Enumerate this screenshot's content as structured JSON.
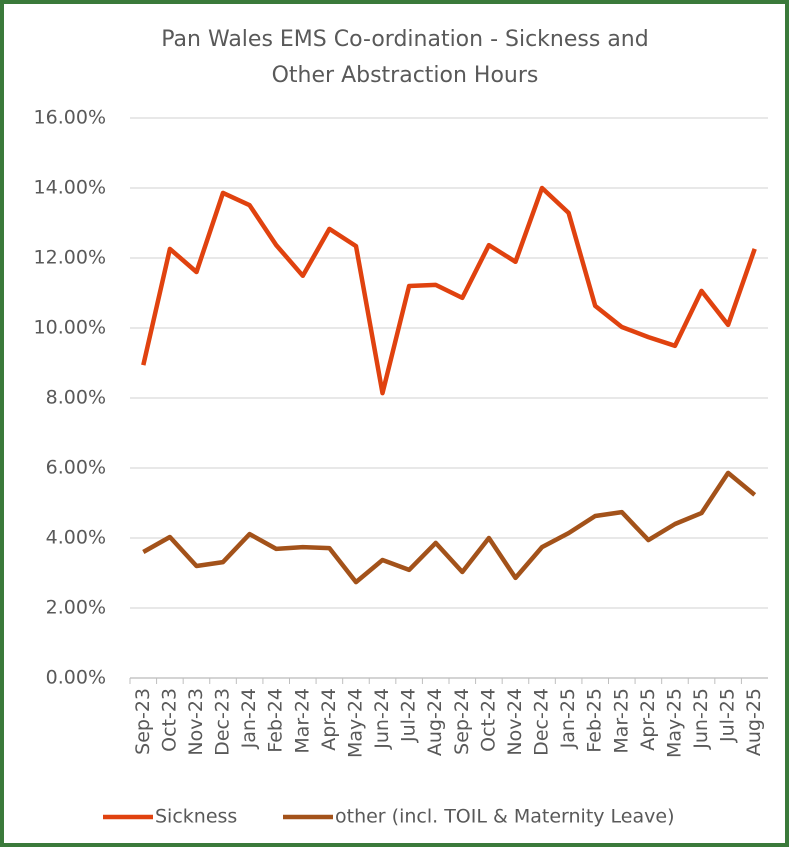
{
  "chart_data": {
    "type": "line",
    "title": [
      "Pan Wales EMS Co-ordination - Sickness and",
      "Other Abstraction Hours"
    ],
    "categories": [
      "Sep-23",
      "Oct-23",
      "Nov-23",
      "Dec-23",
      "Jan-24",
      "Feb-24",
      "Mar-24",
      "Apr-24",
      "May-24",
      "Jun-24",
      "Jul-24",
      "Aug-24",
      "Sep-24",
      "Oct-24",
      "Nov-24",
      "Dec-24",
      "Jan-25",
      "Feb-25",
      "Mar-25",
      "Apr-25",
      "May-25",
      "Jun-25",
      "Jul-25",
      "Aug-25"
    ],
    "series": [
      {
        "name": "Sickness",
        "color": "#e0420f",
        "values": [
          8.94,
          12.26,
          11.6,
          13.86,
          13.51,
          12.37,
          11.49,
          12.83,
          12.34,
          8.14,
          11.2,
          11.23,
          10.86,
          12.37,
          11.89,
          14.0,
          13.29,
          10.63,
          10.03,
          9.74,
          9.49,
          11.06,
          10.09,
          12.26
        ]
      },
      {
        "name": "other (incl. TOIL & Maternity Leave)",
        "color": "#a3521a",
        "values": [
          3.6,
          4.03,
          3.2,
          3.31,
          4.11,
          3.69,
          3.74,
          3.71,
          2.74,
          3.37,
          3.09,
          3.86,
          3.03,
          4.0,
          2.86,
          3.74,
          4.14,
          4.63,
          4.74,
          3.94,
          4.4,
          4.71,
          5.86,
          5.23
        ]
      }
    ],
    "ylim": [
      0,
      16
    ],
    "yticks": [
      {
        "value": 0,
        "label": "0.00%"
      },
      {
        "value": 2,
        "label": "2.00%"
      },
      {
        "value": 4,
        "label": "4.00%"
      },
      {
        "value": 6,
        "label": "6.00%"
      },
      {
        "value": 8,
        "label": "8.00%"
      },
      {
        "value": 10,
        "label": "10.00%"
      },
      {
        "value": 12,
        "label": "12.00%"
      },
      {
        "value": 14,
        "label": "14.00%"
      },
      {
        "value": 16,
        "label": "16.00%"
      }
    ],
    "grid": true,
    "legend": "bottom"
  }
}
